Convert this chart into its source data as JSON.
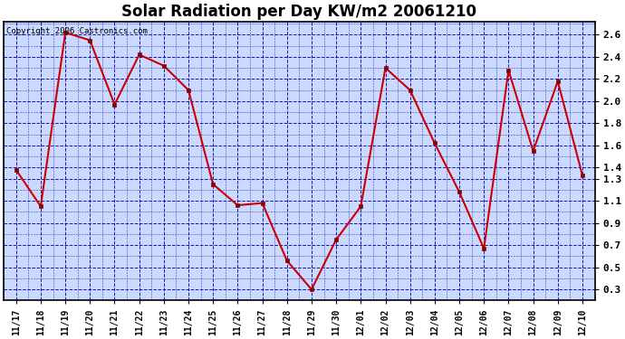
{
  "title": "Solar Radiation per Day KW/m2 20061210",
  "copyright_text": "Copyright 2006 Castronics.com",
  "x_labels": [
    "11/17",
    "11/18",
    "11/19",
    "11/20",
    "11/21",
    "11/22",
    "11/23",
    "11/24",
    "11/25",
    "11/26",
    "11/27",
    "11/28",
    "11/29",
    "11/30",
    "12/01",
    "12/02",
    "12/03",
    "12/04",
    "12/05",
    "12/06",
    "12/07",
    "12/08",
    "12/09",
    "12/10"
  ],
  "y_values": [
    1.38,
    1.05,
    2.62,
    2.55,
    1.97,
    2.42,
    2.32,
    2.1,
    1.25,
    1.06,
    1.08,
    0.56,
    0.3,
    0.75,
    1.05,
    2.3,
    2.1,
    1.62,
    1.18,
    0.67,
    2.28,
    1.55,
    2.18,
    1.33
  ],
  "line_color": "#cc0000",
  "marker_color": "#880000",
  "marker_size": 3,
  "bg_color": "#ccd9ff",
  "grid_color": "#0000bb",
  "border_color": "#000000",
  "title_fontsize": 12,
  "ylim": [
    0.2,
    2.72
  ],
  "yticks": [
    0.3,
    0.5,
    0.7,
    0.9,
    1.1,
    1.3,
    1.4,
    1.6,
    1.8,
    2.0,
    2.2,
    2.4,
    2.6
  ],
  "ytick_labels": [
    "0.3",
    "0.5",
    "0.7",
    "0.9",
    "1.1",
    "1.3",
    "1.4",
    "1.6",
    "1.8",
    "2.0",
    "2.2",
    "2.4",
    "2.6"
  ]
}
